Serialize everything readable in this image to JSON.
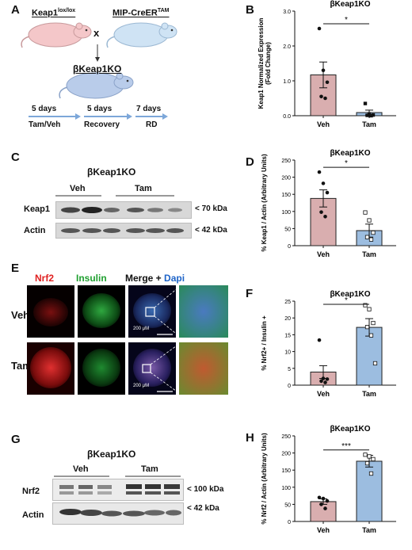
{
  "panels": {
    "A": {
      "label": "A",
      "mouse_left": "Keap1",
      "mouse_left_sup": "lox/lox",
      "cross": "x",
      "mouse_right": "MIP-CreER",
      "mouse_right_sup": "TAM",
      "offspring": "βKeap1KO",
      "timeline": [
        {
          "days": "5 days",
          "phase": "Tam/Veh"
        },
        {
          "days": "5 days",
          "phase": "Recovery"
        },
        {
          "days": "7 days",
          "phase": "RD"
        }
      ],
      "colors": {
        "left_mouse": "#f4c7c9",
        "right_mouse": "#cfe3f4",
        "offspring": "#b9ccea",
        "arrow": "#7da7d9"
      }
    },
    "B": {
      "label": "B"
    },
    "C": {
      "label": "C",
      "title": "βKeap1KO",
      "groups": [
        "Veh",
        "Tam"
      ],
      "rows": [
        {
          "name": "Keap1",
          "size": "< 70 kDa"
        },
        {
          "name": "Actin",
          "size": "< 42 kDa"
        }
      ]
    },
    "D": {
      "label": "D"
    },
    "E": {
      "label": "E",
      "columns": [
        {
          "text": "Nrf2",
          "color": "#e02020"
        },
        {
          "text": "Insulin",
          "color": "#20a030"
        },
        {
          "text": "Merge + ",
          "color": "#111111"
        },
        {
          "text": "Dapi",
          "color": "#1e64c8"
        }
      ],
      "rows": [
        "Veh",
        "Tam"
      ],
      "scale": "200 μM"
    },
    "F": {
      "label": "F"
    },
    "G": {
      "label": "G",
      "title": "βKeap1KO",
      "groups": [
        "Veh",
        "Tam"
      ],
      "rows": [
        {
          "name": "Nrf2",
          "size": "< 100 kDa"
        },
        {
          "name": "Actin",
          "size": "< 42 kDa"
        }
      ]
    },
    "H": {
      "label": "H"
    }
  },
  "chart_data": [
    {
      "id": "B",
      "type": "bar",
      "title": "βKeap1KO",
      "categories": [
        "Veh",
        "Tam"
      ],
      "values": [
        1.17,
        0.09
      ],
      "errors": [
        0.37,
        0.07
      ],
      "points": [
        [
          2.5,
          1.3,
          0.96,
          0.55,
          0.5
        ],
        [
          0.35,
          0.05,
          0.02,
          0.01,
          0.0
        ]
      ],
      "ylabel": "Keap1 Normalized Expression (Fold Change)",
      "ylim": [
        0,
        3
      ],
      "yticks": [
        0.0,
        1.0,
        2.0,
        3.0
      ],
      "ytick_labels": [
        "0.0",
        "1.0",
        "2.0",
        "3.0"
      ],
      "significance": "*",
      "colors": [
        "#d9aeaf",
        "#9cbde0"
      ],
      "markers": [
        "filled",
        "square"
      ]
    },
    {
      "id": "D",
      "type": "bar",
      "title": "βKeap1KO",
      "categories": [
        "Veh",
        "Tam"
      ],
      "values": [
        138,
        44
      ],
      "errors": [
        25,
        19
      ],
      "points": [
        [
          215,
          182,
          155,
          98,
          85
        ],
        [
          97,
          74,
          38,
          25,
          18
        ]
      ],
      "ylabel": "% Keap1 / Actin (Arbitrary Units)",
      "ylim": [
        0,
        250
      ],
      "yticks": [
        0,
        50,
        100,
        150,
        200,
        250
      ],
      "ytick_labels": [
        "0",
        "50",
        "100",
        "150",
        "200",
        "250"
      ],
      "significance": "*",
      "colors": [
        "#d9aeaf",
        "#9cbde0"
      ],
      "markers": [
        "filled",
        "open-square"
      ]
    },
    {
      "id": "F",
      "type": "bar",
      "title": "βKeap1KO",
      "categories": [
        "Veh",
        "Tam"
      ],
      "values": [
        3.9,
        17.2
      ],
      "errors": [
        1.9,
        2.6
      ],
      "points": [
        [
          13.4,
          2.0,
          1.8,
          1.2,
          0.8
        ],
        [
          23.8,
          22.6,
          18.5,
          17.3,
          14.8,
          6.5
        ]
      ],
      "ylabel": "% Nrf2+ / Insulin +",
      "ylim": [
        0,
        25
      ],
      "yticks": [
        0,
        5,
        10,
        15,
        20,
        25
      ],
      "ytick_labels": [
        "0",
        "5",
        "10",
        "15",
        "20",
        "25"
      ],
      "significance": "*",
      "colors": [
        "#d9aeaf",
        "#9cbde0"
      ],
      "markers": [
        "filled",
        "open-square"
      ]
    },
    {
      "id": "H",
      "type": "bar",
      "title": "βKeap1KO",
      "categories": [
        "Veh",
        "Tam"
      ],
      "values": [
        58,
        176
      ],
      "errors": [
        8,
        17
      ],
      "points": [
        [
          70,
          67,
          60,
          50,
          38
        ],
        [
          195,
          190,
          182,
          170,
          140
        ]
      ],
      "ylabel": "% Nrf2 / Actin (Arbitrary Units)",
      "ylim": [
        0,
        250
      ],
      "yticks": [
        0,
        50,
        100,
        150,
        200,
        250
      ],
      "ytick_labels": [
        "0",
        "50",
        "100",
        "150",
        "200",
        "250"
      ],
      "significance": "***",
      "colors": [
        "#d9aeaf",
        "#9cbde0"
      ],
      "markers": [
        "filled",
        "open-square"
      ]
    }
  ]
}
